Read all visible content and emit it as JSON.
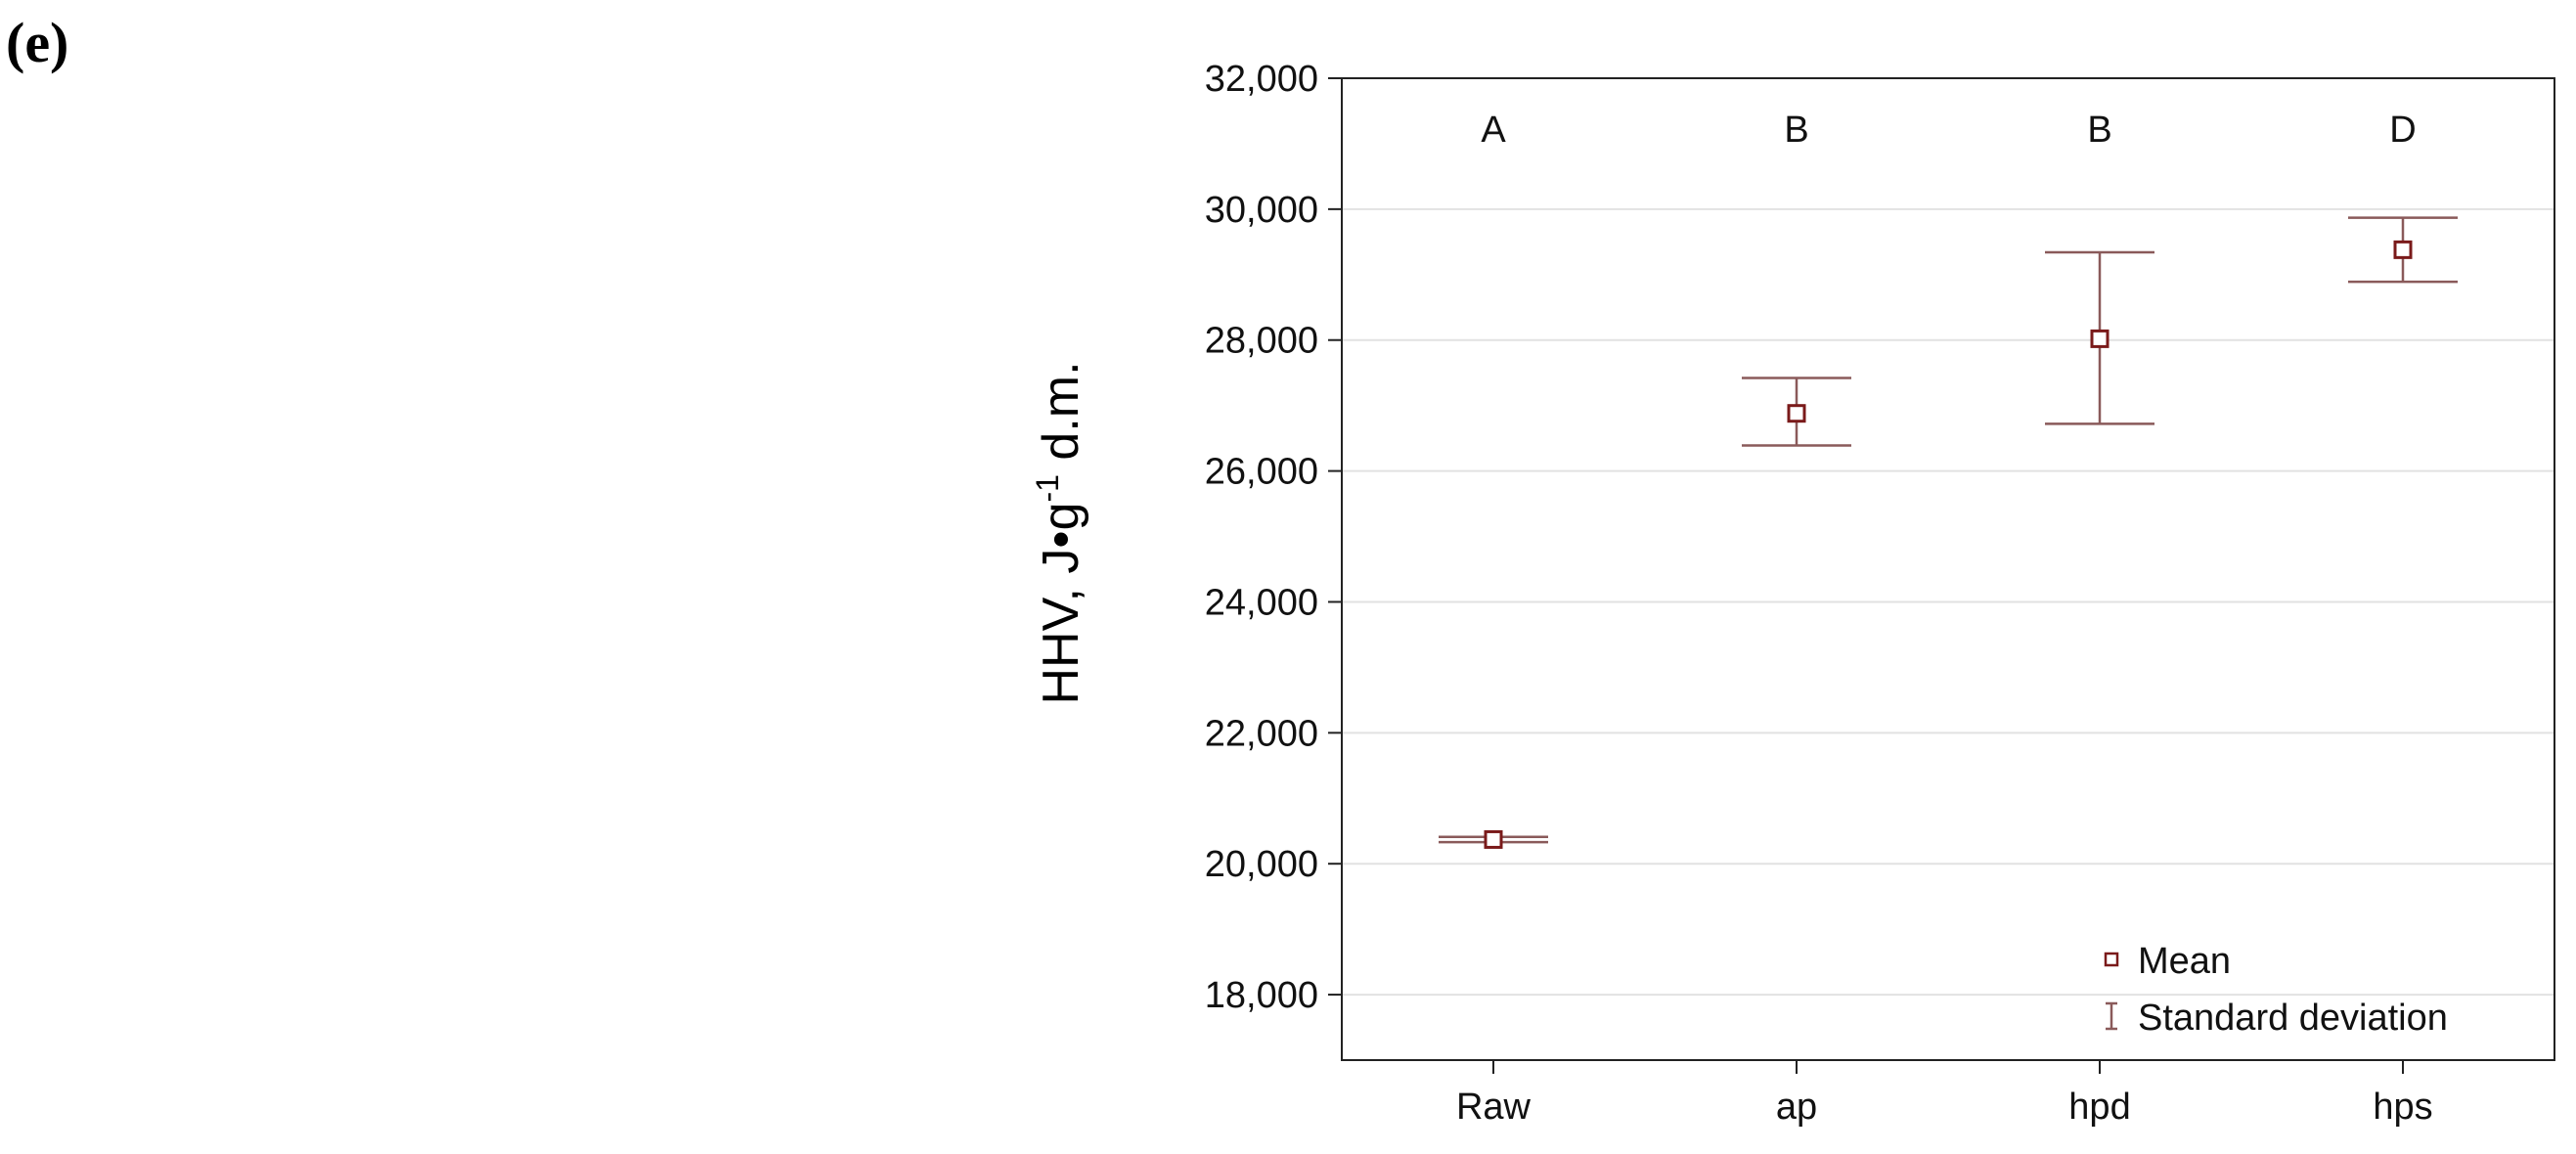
{
  "panel_label": "(e)",
  "chart_data": {
    "type": "scatter",
    "plot_style": "mean with standard deviation error bars",
    "categories": [
      "Raw",
      "ap",
      "hpd",
      "hps"
    ],
    "means": [
      20370,
      26880,
      28020,
      29380
    ],
    "sd_low": [
      20330,
      26390,
      26720,
      28890
    ],
    "sd_high": [
      20410,
      27420,
      29340,
      29870
    ],
    "group_letters": [
      "A",
      "B",
      "B",
      "D"
    ],
    "ylabel_main": "HHV, J•g",
    "ylabel_sup": "-1",
    "ylabel_tail": " d.m.",
    "ylim": [
      17000,
      32000
    ],
    "yticks": [
      18000,
      20000,
      22000,
      24000,
      26000,
      28000,
      30000,
      32000
    ],
    "ytick_labels": [
      "18,000",
      "20,000",
      "22,000",
      "24,000",
      "26,000",
      "28,000",
      "30,000",
      "32,000"
    ],
    "grid": true,
    "legend": {
      "position": "bottom-right",
      "items": [
        {
          "symbol": "square-marker",
          "label": "Mean"
        },
        {
          "symbol": "error-bar",
          "label": "Standard deviation"
        }
      ]
    },
    "colors": {
      "marker": "#7a1a1a",
      "error_bar": "#8a5a5a",
      "grid": "#e2e2e2",
      "axis": "#222222"
    }
  }
}
